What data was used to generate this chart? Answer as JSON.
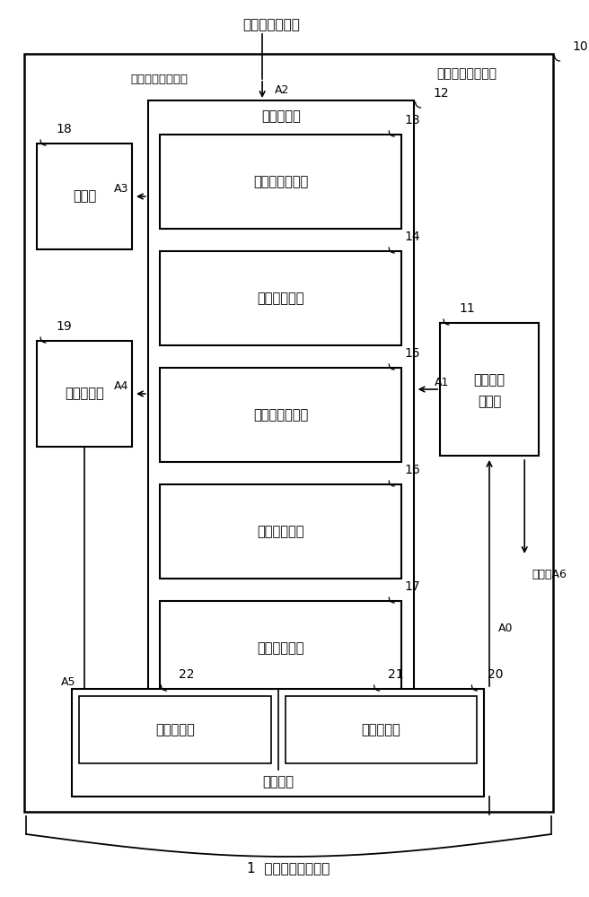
{
  "bg_color": "#ffffff",
  "line_color": "#000000",
  "title_bottom": "1  触摸面板输入装置",
  "label_top": "自电梯控制装置",
  "label_touch_input": "触摸输入判定装置",
  "label_select_dir": "选择值的变化方向",
  "label_10": "10",
  "label_11": "11",
  "label_12": "12",
  "label_13": "13",
  "label_14": "14",
  "label_15": "15",
  "label_16": "16",
  "label_17": "17",
  "label_18": "18",
  "label_19": "19",
  "label_20": "20",
  "label_21": "21",
  "label_22": "22",
  "box_op_judge": "操作判定部",
  "box_op_type": "操作种类判定部",
  "box_op_hand": "操作手决定部",
  "box_rot_dir": "旋转方向判定部",
  "box_sel_change": "选择值变更部",
  "box_sel_decide": "选择值决定部",
  "box_notify": "通知部",
  "box_display": "显示控制部",
  "box_op_info_1": "操作信息",
  "box_op_info_2": "输入部",
  "box_display_panel": "显示面板部",
  "box_op_panel": "操作面板部",
  "box_touch_panel_label": "触摸面板",
  "arrow_A0": "A0",
  "arrow_A1": "A1",
  "arrow_A2": "A2",
  "arrow_A3": "A3",
  "arrow_A4": "A4",
  "arrow_A5": "A5",
  "arrow_A6": "选择值A6"
}
